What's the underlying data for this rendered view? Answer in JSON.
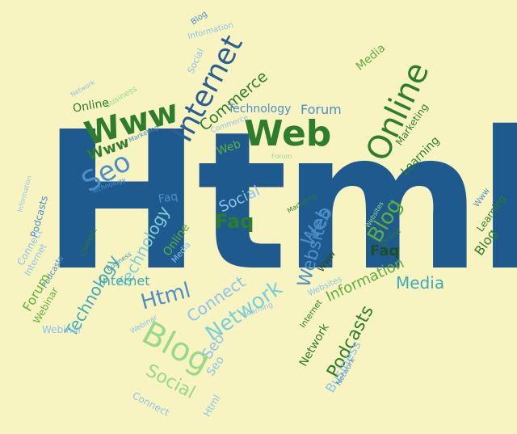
{
  "colors": {
    "background": "#f7f4c2",
    "primary": "#1f5a8f",
    "dark_green": "#2e7d2e",
    "medium_green": "#5fae3c",
    "light_green": "#9ad88a",
    "dark_blue": "#2b5f93",
    "medium_blue": "#4d8fc8",
    "light_blue": "#8cc3ea",
    "teal": "#3fa9b5"
  },
  "words": {
    "main": "Html",
    "blog": "Blog",
    "information": "Information",
    "social": "Social",
    "internet": "Internet",
    "commerce": "Commerce",
    "media": "Media",
    "online": "Online",
    "network": "Network",
    "business": "Business",
    "www": "Www",
    "technology": "Technology",
    "forum": "Forum",
    "web": "Web",
    "marketing": "Marketing",
    "seo": "Seo",
    "learning": "Learning",
    "faq": "Faq",
    "podcasts": "Podcasts",
    "connect": "Connect",
    "websites": "Websites",
    "webinar": "Webinar"
  }
}
